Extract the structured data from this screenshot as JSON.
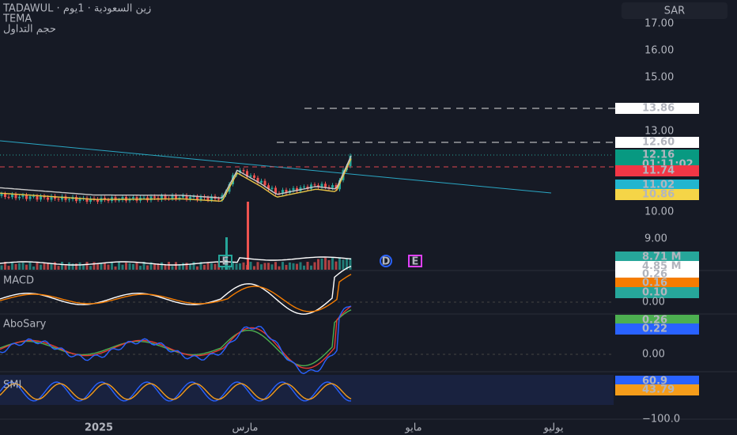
{
  "header": {
    "symbol_line": "TADAWUL · زين السعودية · 1يوم",
    "indicator_1": "TEMA",
    "indicator_2": "حجم التداول"
  },
  "currency": "SAR",
  "price_axis": [
    "17.00",
    "16.00",
    "15.00",
    "13.00",
    "10.00",
    "9.00"
  ],
  "price_tags": [
    "13.86",
    "12.60",
    "12.16",
    "01:11:02",
    "11.74",
    "11.02",
    "10.86"
  ],
  "volume_tags": [
    "8.71 M",
    "4.85 M"
  ],
  "event_markers": [
    "E",
    "D",
    "E"
  ],
  "macd": {
    "title": "MACD",
    "tags": [
      "0.26",
      "0.16",
      "0.10"
    ],
    "axis": [
      "0.00"
    ]
  },
  "abosary": {
    "title": "AboSary",
    "tags": [
      "0.26",
      "0.22"
    ],
    "axis": [
      "0.00"
    ]
  },
  "smi": {
    "title": "SMI",
    "tags": [
      "60.9",
      "43.79"
    ],
    "axis": [
      "−100.0"
    ]
  },
  "time_axis": [
    "2025",
    "مارس",
    "مايو",
    "يوليو"
  ]
}
